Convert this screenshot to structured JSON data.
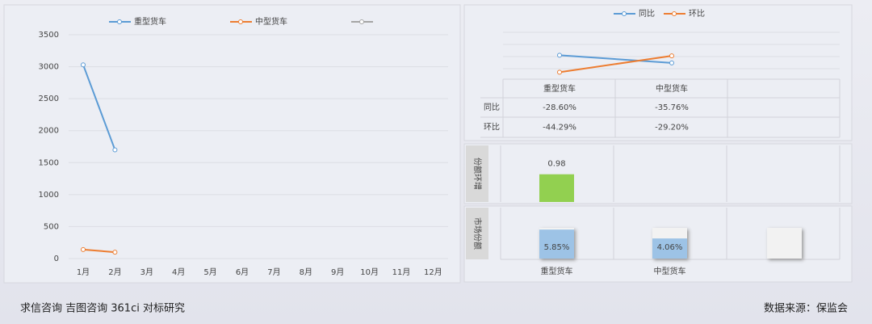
{
  "chart_data": [
    {
      "type": "line",
      "categories": [
        "1月",
        "2月",
        "3月",
        "4月",
        "5月",
        "6月",
        "7月",
        "8月",
        "9月",
        "10月",
        "11月",
        "12月"
      ],
      "series": [
        {
          "name": "重型货车",
          "color": "#5b9bd5",
          "values": [
            3030,
            1700,
            null,
            null,
            null,
            null,
            null,
            null,
            null,
            null,
            null,
            null
          ]
        },
        {
          "name": "中型货车",
          "color": "#ed7d31",
          "values": [
            140,
            100,
            null,
            null,
            null,
            null,
            null,
            null,
            null,
            null,
            null,
            null
          ]
        }
      ],
      "ylim": [
        0,
        3500
      ],
      "yticks": [
        0,
        500,
        1000,
        1500,
        2000,
        2500,
        3000,
        3500
      ],
      "grid": true
    },
    {
      "type": "line",
      "categories": [
        "重型货车",
        "中型货车"
      ],
      "series": [
        {
          "name": "同比",
          "color": "#5b9bd5",
          "values": [
            -28.6,
            -35.76
          ],
          "value_labels": [
            "-28.60%",
            "-35.76%"
          ]
        },
        {
          "name": "环比",
          "color": "#ed7d31",
          "values": [
            -44.29,
            -29.2
          ],
          "value_labels": [
            "-44.29%",
            "-29.20%"
          ]
        }
      ],
      "ylim": [
        -50,
        0
      ]
    },
    {
      "type": "bar",
      "title": "份额环增",
      "values": [
        0.98
      ],
      "color": "#92d050",
      "ylim": [
        0,
        2
      ]
    },
    {
      "type": "bar",
      "title": "市场份额",
      "categories": [
        "重型货车",
        "中型货车"
      ],
      "values": [
        5.85,
        4.06
      ],
      "value_labels": [
        "5.85%",
        "4.06%"
      ],
      "color": "#9dc3e6",
      "ylim": [
        0,
        6.2
      ]
    }
  ],
  "footer": {
    "left": "求信咨询 吉图咨询 361ci 对标研究",
    "right": "数据来源：保监会"
  }
}
